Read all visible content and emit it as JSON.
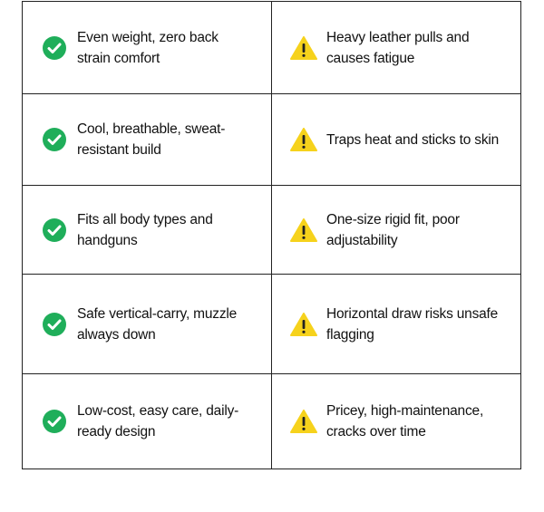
{
  "colors": {
    "check": "#1fae5a",
    "warning": "#f6d21c"
  },
  "rows": [
    {
      "pro": "Even weight, zero back strain comfort",
      "con": "Heavy leather pulls and causes fatigue"
    },
    {
      "pro": "Cool, breathable, sweat-resistant build",
      "con": "Traps heat and sticks to skin"
    },
    {
      "pro": "Fits all body types and handguns",
      "con": "One-size rigid fit, poor adjustability"
    },
    {
      "pro": "Safe vertical-carry, muzzle always down",
      "con": "Horizontal draw risks unsafe flagging"
    },
    {
      "pro": "Low-cost, easy care, daily-ready design",
      "con": "Pricey, high-maintenance, cracks over time"
    }
  ]
}
